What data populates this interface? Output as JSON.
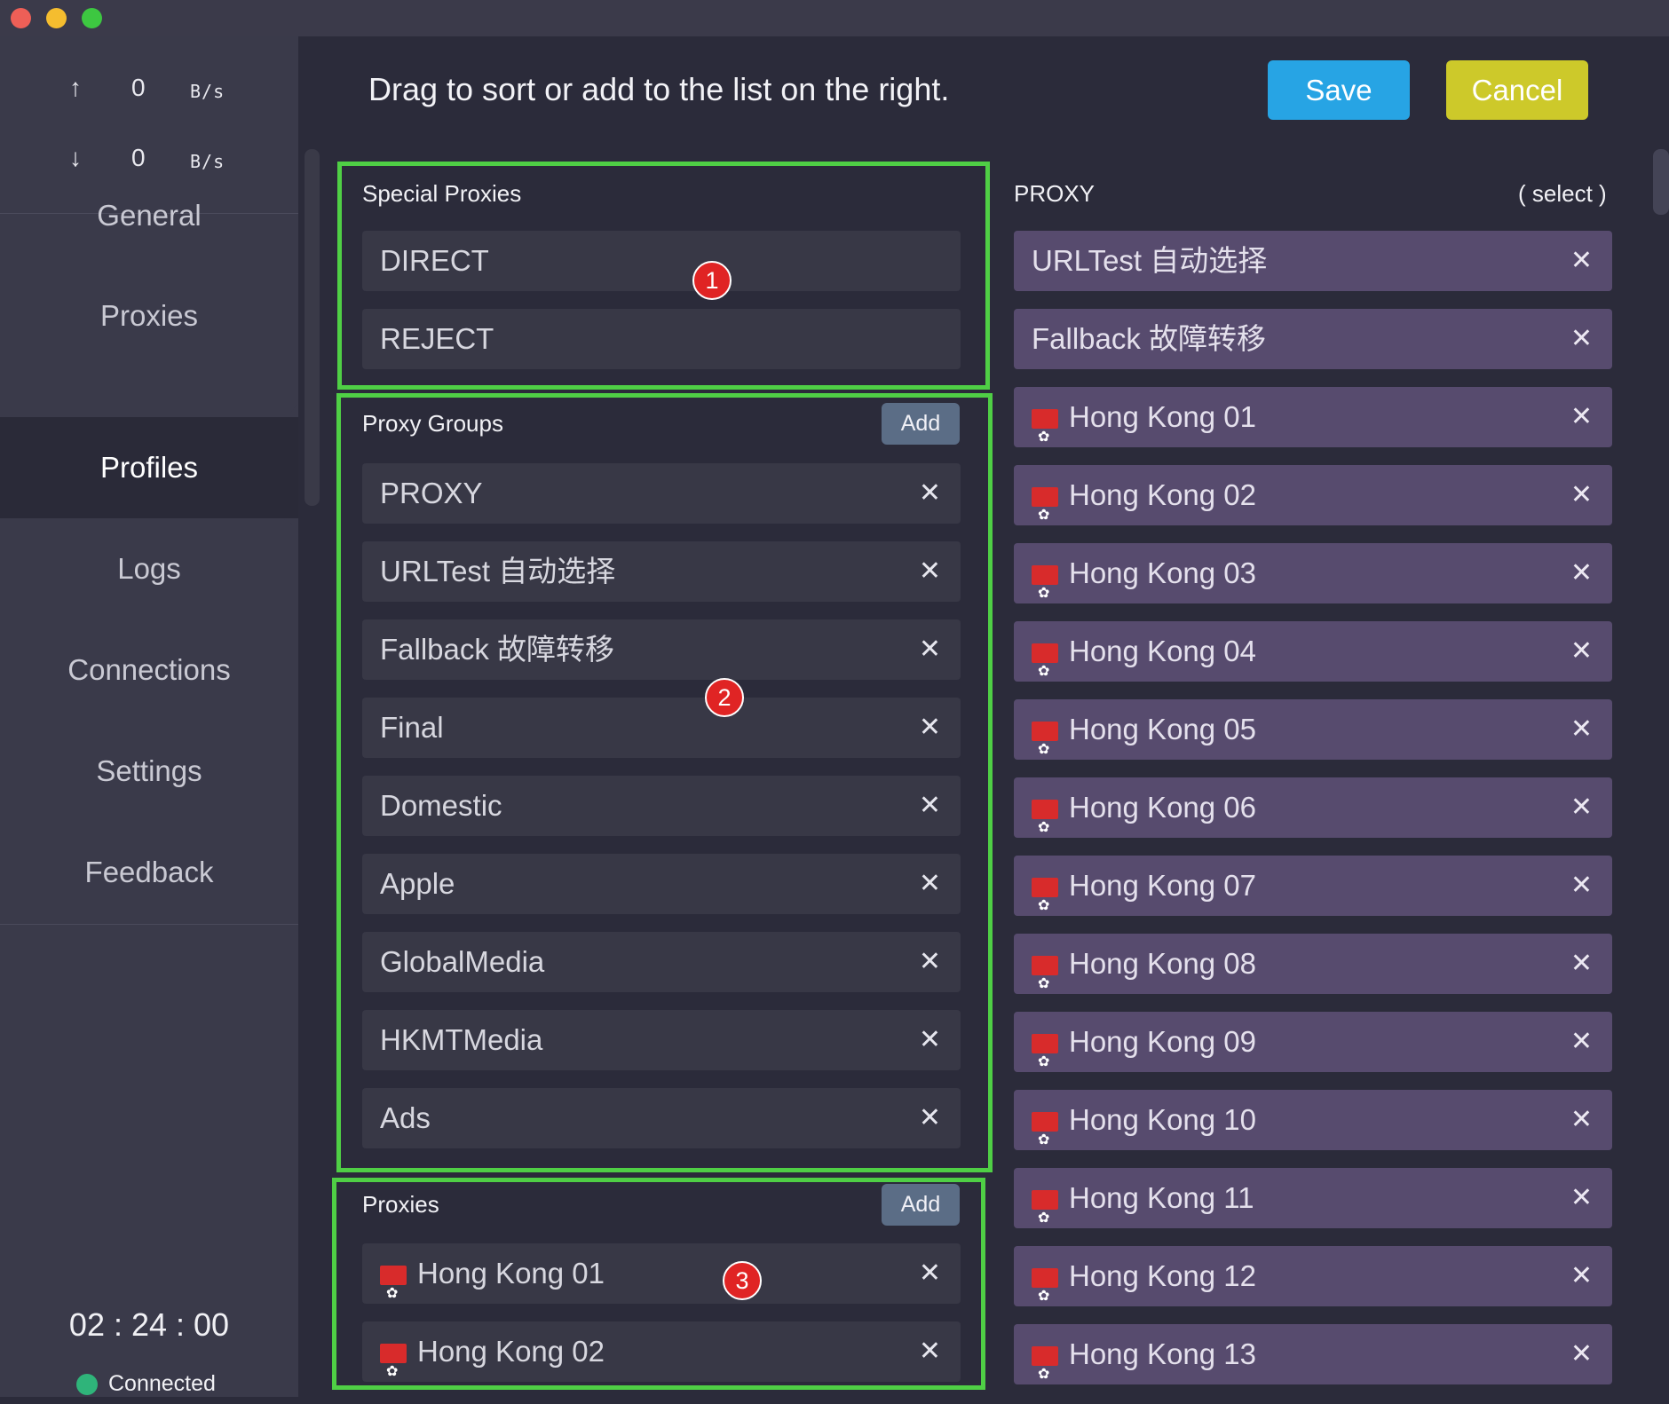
{
  "titlebar": {
    "buttons": [
      "close",
      "minimize",
      "zoom"
    ],
    "colors": [
      "#ee5f57",
      "#f5bd2f",
      "#3dc741"
    ]
  },
  "stats": {
    "upload": {
      "arrow": "↑",
      "value": "0",
      "unit": "B/s"
    },
    "download": {
      "arrow": "↓",
      "value": "0",
      "unit": "B/s"
    }
  },
  "nav": [
    "General",
    "Proxies",
    "Profiles",
    "Logs",
    "Connections",
    "Settings",
    "Feedback"
  ],
  "nav_active": "Profiles",
  "footer": {
    "timer": "02 : 24 : 00",
    "status": "Connected",
    "status_color": "#2fb47a"
  },
  "header": {
    "instruction": "Drag to sort or add to the list on the right.",
    "save": "Save",
    "cancel": "Cancel"
  },
  "special": {
    "title": "Special Proxies",
    "items": [
      "DIRECT",
      "REJECT"
    ]
  },
  "groups": {
    "title": "Proxy Groups",
    "add": "Add",
    "items": [
      "PROXY",
      "URLTest 自动选择",
      "Fallback 故障转移",
      "Final",
      "Domestic",
      "Apple",
      "GlobalMedia",
      "HKMTMedia",
      "Ads"
    ]
  },
  "proxies": {
    "title": "Proxies",
    "add": "Add",
    "items": [
      "Hong Kong 01",
      "Hong Kong 02"
    ]
  },
  "annotations": [
    "1",
    "2",
    "3"
  ],
  "selected_group": {
    "name": "PROXY",
    "type": "( select )",
    "items": [
      {
        "label": "URLTest 自动选择",
        "flag": false
      },
      {
        "label": "Fallback 故障转移",
        "flag": false
      },
      {
        "label": "Hong Kong 01",
        "flag": true
      },
      {
        "label": "Hong Kong 02",
        "flag": true
      },
      {
        "label": "Hong Kong 03",
        "flag": true
      },
      {
        "label": "Hong Kong 04",
        "flag": true
      },
      {
        "label": "Hong Kong 05",
        "flag": true
      },
      {
        "label": "Hong Kong 06",
        "flag": true
      },
      {
        "label": "Hong Kong 07",
        "flag": true
      },
      {
        "label": "Hong Kong 08",
        "flag": true
      },
      {
        "label": "Hong Kong 09",
        "flag": true
      },
      {
        "label": "Hong Kong 10",
        "flag": true
      },
      {
        "label": "Hong Kong 11",
        "flag": true
      },
      {
        "label": "Hong Kong 12",
        "flag": true
      },
      {
        "label": "Hong Kong 13",
        "flag": true
      }
    ]
  },
  "icons": {
    "remove": "✕",
    "flag": "hong-kong-flag-icon"
  },
  "colors": {
    "accent_save": "#27a4e4",
    "accent_cancel": "#cdc92a",
    "highlight_border": "#4fcf45",
    "badge": "#e02424",
    "right_item": "#574b6e"
  }
}
